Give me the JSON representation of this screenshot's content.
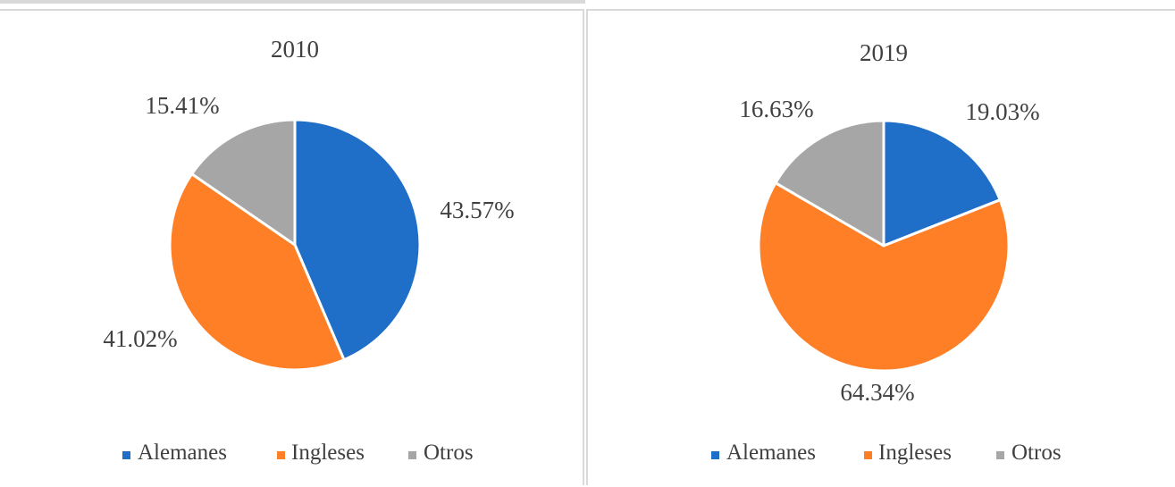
{
  "chart_data": [
    {
      "type": "pie",
      "title": "2010",
      "categories": [
        "Alemanes",
        "Ingleses",
        "Otros"
      ],
      "values": [
        43.57,
        41.02,
        15.41
      ],
      "labels": [
        "43.57%",
        "41.02%",
        "15.41%"
      ],
      "colors": [
        "#1f6fc8",
        "#ff7f27",
        "#a6a6a6"
      ],
      "legend": "bottom"
    },
    {
      "type": "pie",
      "title": "2019",
      "categories": [
        "Alemanes",
        "Ingleses",
        "Otros"
      ],
      "values": [
        19.03,
        64.34,
        16.63
      ],
      "labels": [
        "19.03%",
        "64.34%",
        "16.63%"
      ],
      "colors": [
        "#1f6fc8",
        "#ff7f27",
        "#a6a6a6"
      ],
      "legend": "bottom"
    }
  ]
}
